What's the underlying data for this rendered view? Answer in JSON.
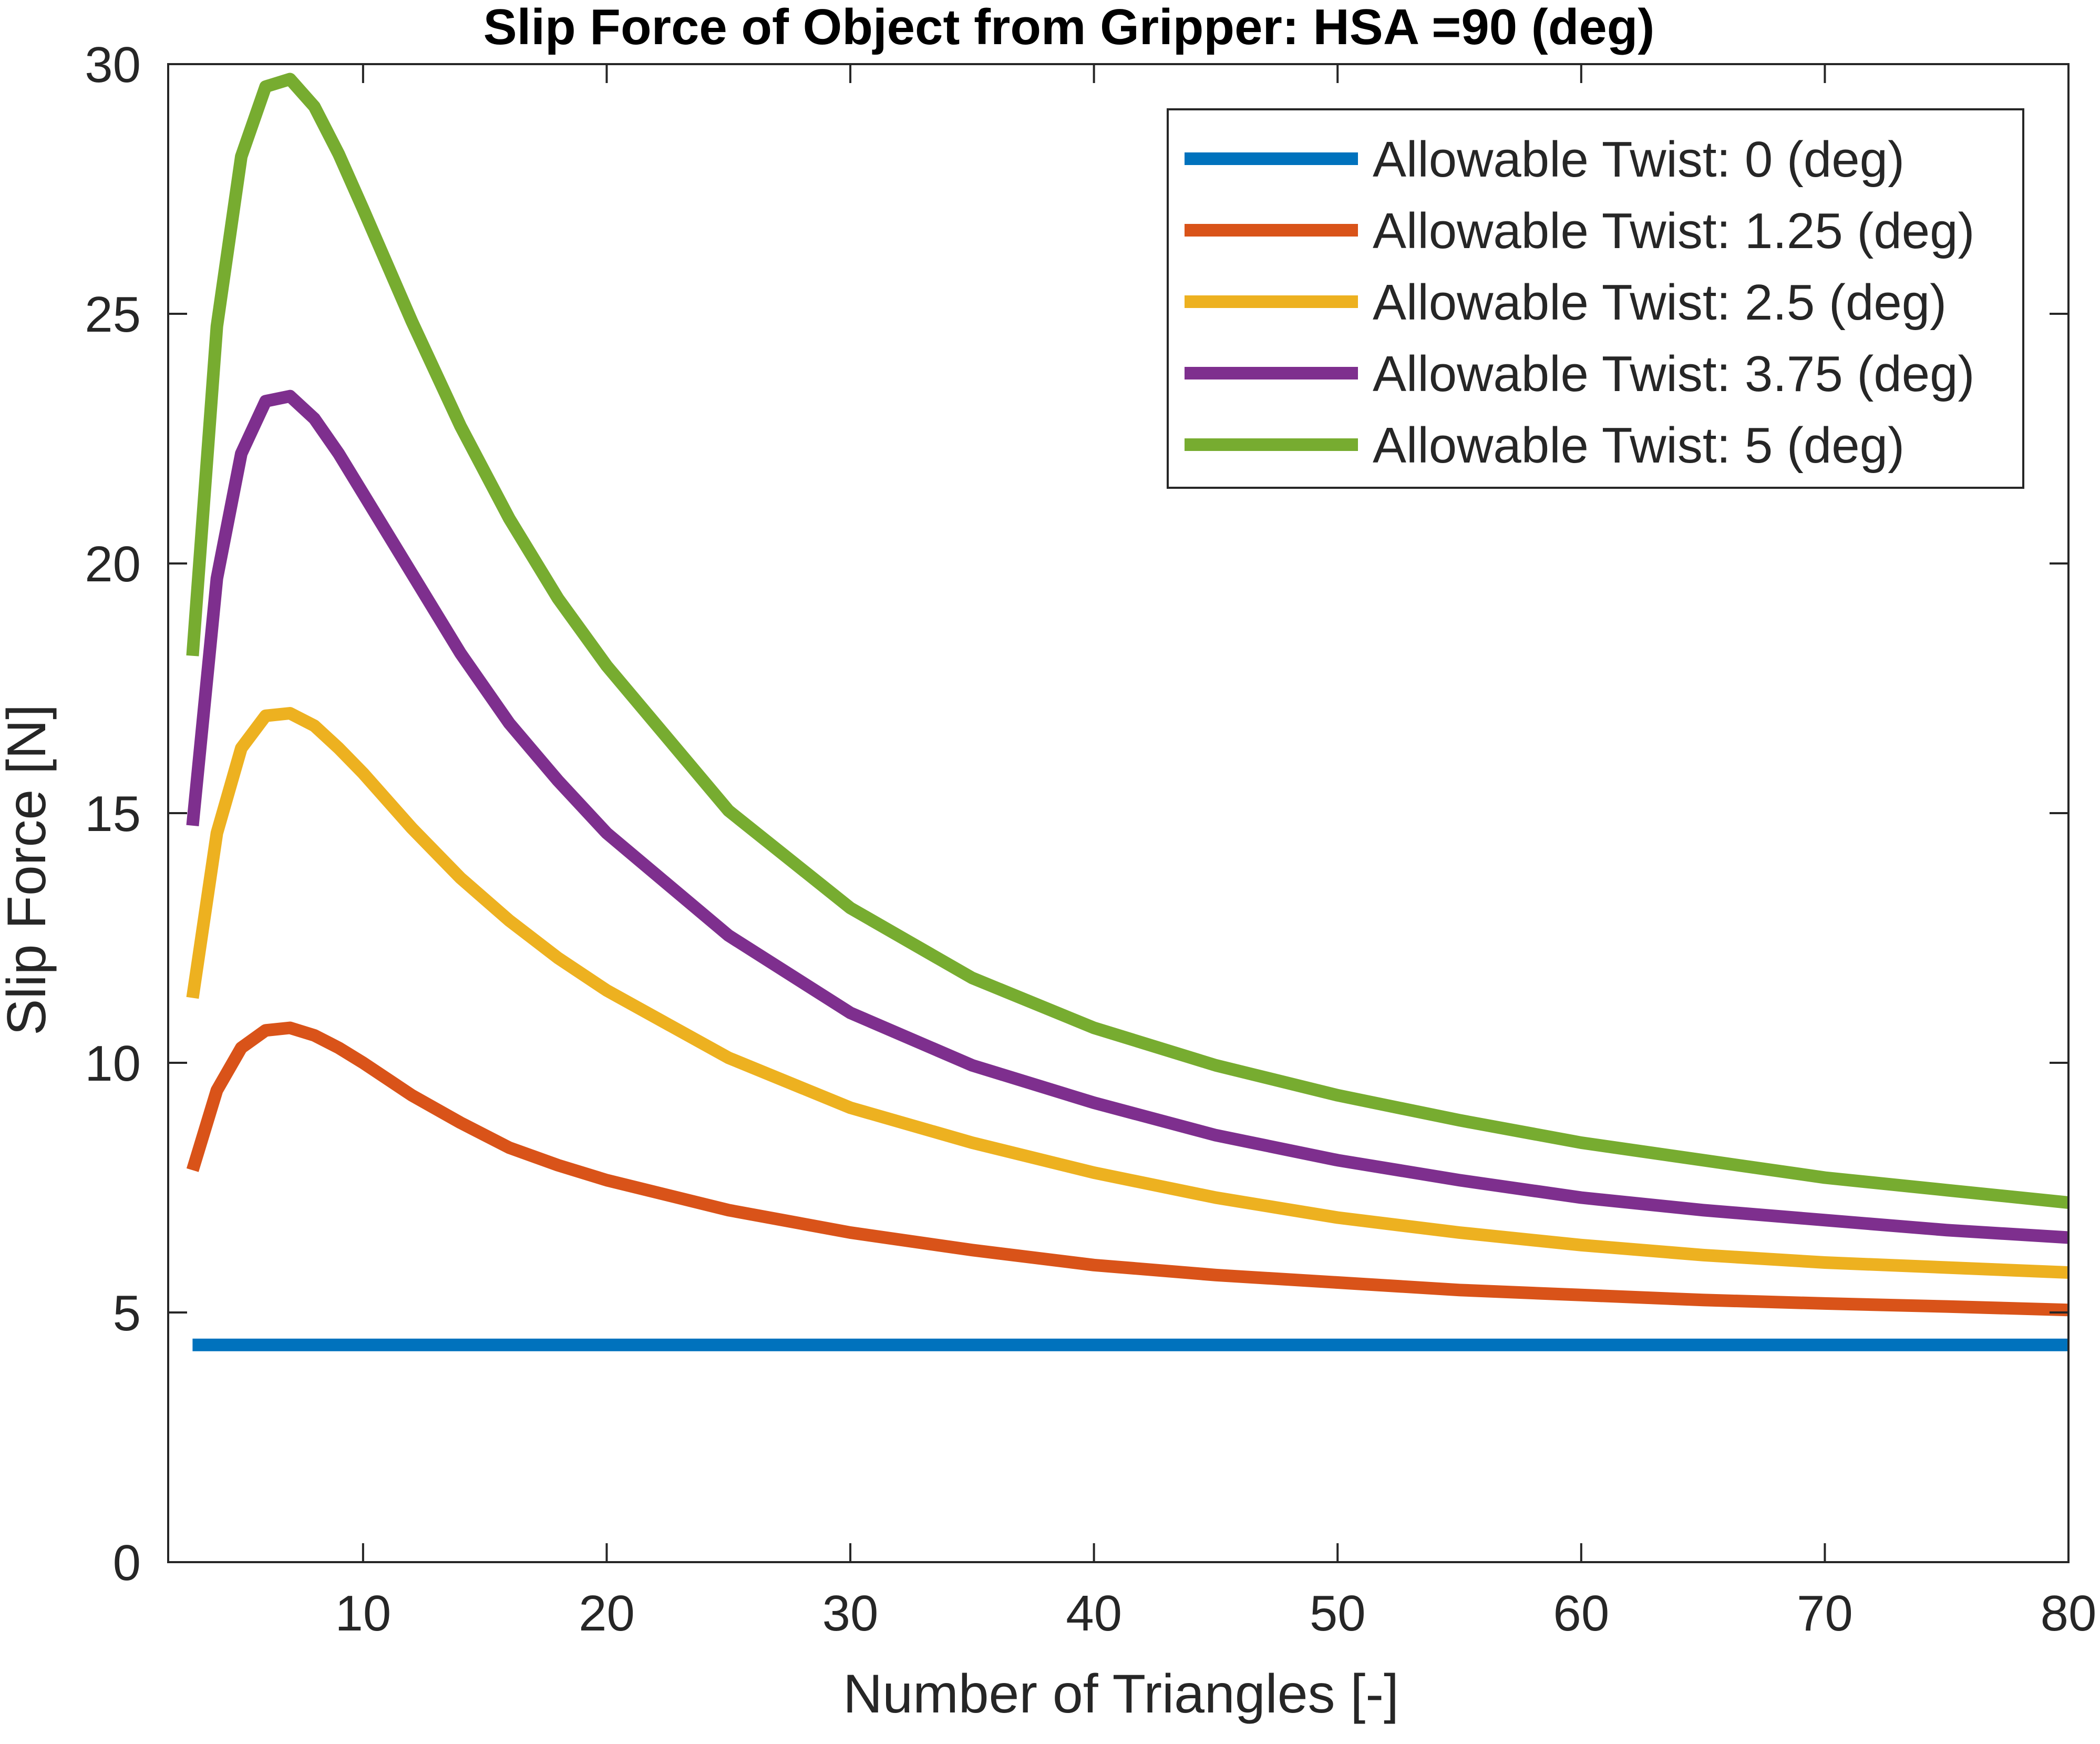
{
  "chart_data": {
    "type": "line",
    "title": "Slip Force of Object from Gripper: HSA =90 (deg)",
    "xlabel": "Number of Triangles [-]",
    "ylabel": "Slip Force [N]",
    "xlim": [
      2,
      80
    ],
    "ylim": [
      0,
      30
    ],
    "xticks": [
      10,
      20,
      30,
      40,
      50,
      60,
      70,
      80
    ],
    "yticks": [
      0,
      5,
      10,
      15,
      20,
      25,
      30
    ],
    "grid": false,
    "legend_position": "top-right",
    "x": [
      3,
      4,
      5,
      6,
      7,
      8,
      9,
      10,
      12,
      14,
      16,
      18,
      20,
      25,
      30,
      35,
      40,
      45,
      50,
      55,
      60,
      65,
      70,
      75,
      80
    ],
    "series": [
      {
        "name": "Allowable Twist: 0 (deg)",
        "color": "#0072BD",
        "values": [
          4.35,
          4.35,
          4.35,
          4.35,
          4.35,
          4.35,
          4.35,
          4.35,
          4.35,
          4.35,
          4.35,
          4.35,
          4.35,
          4.35,
          4.35,
          4.35,
          4.35,
          4.35,
          4.35,
          4.35,
          4.35,
          4.35,
          4.35,
          4.35,
          4.35
        ]
      },
      {
        "name": "Allowable Twist: 1.25 (deg)",
        "color": "#D95319",
        "values": [
          7.85,
          9.45,
          10.3,
          10.65,
          10.7,
          10.55,
          10.3,
          10.0,
          9.35,
          8.8,
          8.3,
          7.95,
          7.65,
          7.05,
          6.6,
          6.25,
          5.95,
          5.75,
          5.6,
          5.45,
          5.35,
          5.25,
          5.18,
          5.12,
          5.05
        ]
      },
      {
        "name": "Allowable Twist: 2.5 (deg)",
        "color": "#EDB120",
        "values": [
          11.3,
          14.6,
          16.3,
          16.95,
          17.0,
          16.75,
          16.3,
          15.8,
          14.7,
          13.7,
          12.85,
          12.1,
          11.45,
          10.1,
          9.1,
          8.4,
          7.8,
          7.3,
          6.9,
          6.6,
          6.35,
          6.15,
          6.0,
          5.9,
          5.8
        ]
      },
      {
        "name": "Allowable Twist: 3.75 (deg)",
        "color": "#7E2F8E",
        "values": [
          14.75,
          19.7,
          22.2,
          23.25,
          23.35,
          22.9,
          22.2,
          21.4,
          19.8,
          18.2,
          16.8,
          15.65,
          14.6,
          12.55,
          11.0,
          9.95,
          9.2,
          8.55,
          8.05,
          7.65,
          7.3,
          7.05,
          6.85,
          6.65,
          6.5
        ]
      },
      {
        "name": "Allowable Twist: 5 (deg)",
        "color": "#77AC30",
        "values": [
          18.15,
          24.75,
          28.15,
          29.55,
          29.7,
          29.15,
          28.2,
          27.1,
          24.85,
          22.75,
          20.9,
          19.3,
          17.95,
          15.05,
          13.1,
          11.7,
          10.7,
          9.95,
          9.35,
          8.85,
          8.4,
          8.05,
          7.7,
          7.45,
          7.2
        ]
      }
    ]
  }
}
